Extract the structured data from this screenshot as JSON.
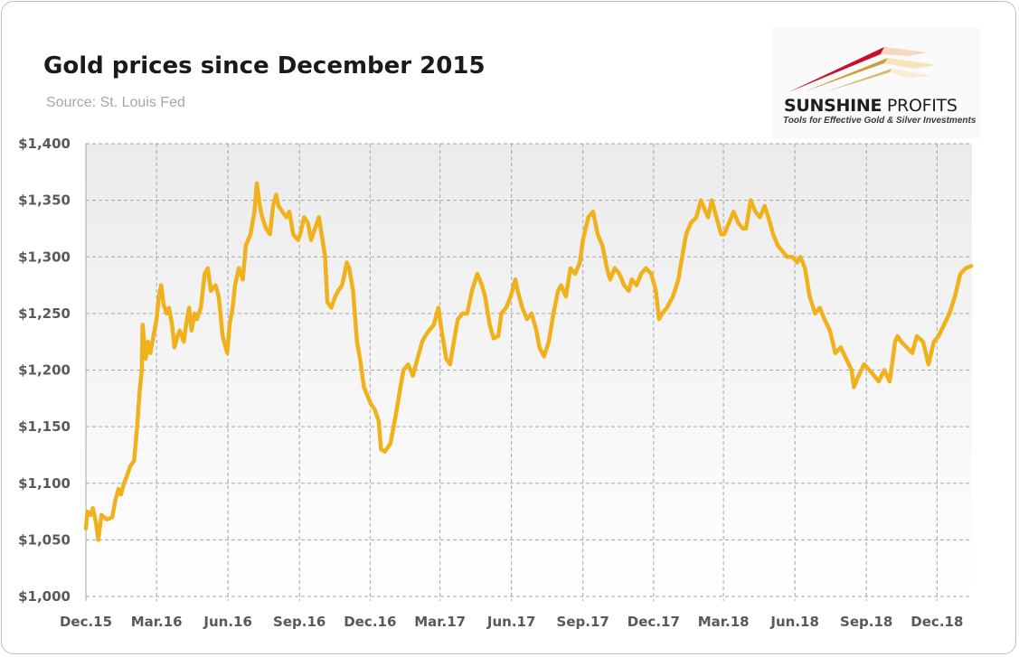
{
  "header": {
    "title": "Gold prices since December 2015",
    "subtitle": "Source: St. Louis Fed"
  },
  "logo": {
    "name_bold": "SUNSHINE",
    "name_light": " PROFITS",
    "tagline": "Tools for Effective Gold & Silver Investments"
  },
  "colors": {
    "line": "#f0b21c",
    "plot_bg_top": "#ebebeb",
    "plot_bg_bottom": "#ffffff",
    "grid": "#a6a6a6"
  },
  "chart_data": {
    "type": "line",
    "title": "Gold prices since December 2015",
    "subtitle": "Source: St. Louis Fed",
    "xlabel": "",
    "ylabel": "",
    "ylim": [
      1000,
      1400
    ],
    "yticks": [
      1000,
      1050,
      1100,
      1150,
      1200,
      1250,
      1300,
      1350,
      1400
    ],
    "ytick_labels": [
      "$1,000",
      "$1,050",
      "$1,100",
      "$1,150",
      "$1,200",
      "$1,250",
      "$1,300",
      "$1,350",
      "$1,400"
    ],
    "xticks": [
      "2015-12-01",
      "2016-03-01",
      "2016-06-01",
      "2016-09-01",
      "2016-12-01",
      "2017-03-01",
      "2017-06-01",
      "2017-09-01",
      "2017-12-01",
      "2018-03-01",
      "2018-06-01",
      "2018-09-01",
      "2018-12-01"
    ],
    "xtick_labels": [
      "Dec.15",
      "Mar.16",
      "Jun.16",
      "Sep.16",
      "Dec.16",
      "Mar.17",
      "Jun.17",
      "Sep.17",
      "Dec.17",
      "Mar.18",
      "Jun.18",
      "Sep.18",
      "Dec.18"
    ],
    "xlim": [
      "2015-12-01",
      "2019-01-15"
    ],
    "grid": true,
    "series": [
      {
        "x": [
          "2015-12-01",
          "2015-12-03",
          "2015-12-07",
          "2015-12-10",
          "2015-12-14",
          "2015-12-17",
          "2015-12-21",
          "2015-12-28",
          "2016-01-04",
          "2016-01-08",
          "2016-01-12",
          "2016-01-15",
          "2016-01-19",
          "2016-01-22",
          "2016-01-27",
          "2016-02-01",
          "2016-02-05",
          "2016-02-08",
          "2016-02-11",
          "2016-02-12",
          "2016-02-16",
          "2016-02-19",
          "2016-02-22",
          "2016-02-26",
          "2016-03-01",
          "2016-03-04",
          "2016-03-07",
          "2016-03-10",
          "2016-03-14",
          "2016-03-17",
          "2016-03-21",
          "2016-03-24",
          "2016-03-28",
          "2016-03-31",
          "2016-04-05",
          "2016-04-08",
          "2016-04-12",
          "2016-04-15",
          "2016-04-19",
          "2016-04-22",
          "2016-04-27",
          "2016-05-02",
          "2016-05-06",
          "2016-05-10",
          "2016-05-16",
          "2016-05-20",
          "2016-05-25",
          "2016-05-31",
          "2016-06-03",
          "2016-06-07",
          "2016-06-10",
          "2016-06-15",
          "2016-06-20",
          "2016-06-24",
          "2016-06-30",
          "2016-07-05",
          "2016-07-08",
          "2016-07-12",
          "2016-07-15",
          "2016-07-20",
          "2016-07-25",
          "2016-07-29",
          "2016-08-02",
          "2016-08-05",
          "2016-08-10",
          "2016-08-15",
          "2016-08-19",
          "2016-08-24",
          "2016-08-30",
          "2016-09-02",
          "2016-09-07",
          "2016-09-12",
          "2016-09-16",
          "2016-09-21",
          "2016-09-26",
          "2016-09-30",
          "2016-10-04",
          "2016-10-07",
          "2016-10-12",
          "2016-10-17",
          "2016-10-21",
          "2016-10-26",
          "2016-11-01",
          "2016-11-04",
          "2016-11-09",
          "2016-11-14",
          "2016-11-18",
          "2016-11-23",
          "2016-11-29",
          "2016-12-02",
          "2016-12-07",
          "2016-12-12",
          "2016-12-15",
          "2016-12-20",
          "2016-12-27",
          "2017-01-03",
          "2017-01-09",
          "2017-01-13",
          "2017-01-19",
          "2017-01-25",
          "2017-01-31",
          "2017-02-06",
          "2017-02-10",
          "2017-02-15",
          "2017-02-21",
          "2017-02-27",
          "2017-03-03",
          "2017-03-09",
          "2017-03-14",
          "2017-03-20",
          "2017-03-24",
          "2017-03-30",
          "2017-04-05",
          "2017-04-11",
          "2017-04-18",
          "2017-04-24",
          "2017-04-28",
          "2017-05-04",
          "2017-05-09",
          "2017-05-15",
          "2017-05-19",
          "2017-05-25",
          "2017-05-31",
          "2017-06-06",
          "2017-06-09",
          "2017-06-15",
          "2017-06-21",
          "2017-06-27",
          "2017-07-03",
          "2017-07-07",
          "2017-07-13",
          "2017-07-19",
          "2017-07-25",
          "2017-07-31",
          "2017-08-04",
          "2017-08-10",
          "2017-08-16",
          "2017-08-22",
          "2017-08-28",
          "2017-09-01",
          "2017-09-08",
          "2017-09-14",
          "2017-09-20",
          "2017-09-26",
          "2017-10-02",
          "2017-10-06",
          "2017-10-12",
          "2017-10-18",
          "2017-10-24",
          "2017-10-30",
          "2017-11-03",
          "2017-11-09",
          "2017-11-15",
          "2017-11-21",
          "2017-11-28",
          "2017-12-04",
          "2017-12-08",
          "2017-12-12",
          "2017-12-18",
          "2017-12-26",
          "2018-01-02",
          "2018-01-08",
          "2018-01-12",
          "2018-01-18",
          "2018-01-25",
          "2018-01-31",
          "2018-02-06",
          "2018-02-09",
          "2018-02-14",
          "2018-02-20",
          "2018-02-26",
          "2018-03-02",
          "2018-03-08",
          "2018-03-14",
          "2018-03-20",
          "2018-03-26",
          "2018-03-30",
          "2018-04-05",
          "2018-04-11",
          "2018-04-17",
          "2018-04-23",
          "2018-04-30",
          "2018-05-04",
          "2018-05-10",
          "2018-05-16",
          "2018-05-22",
          "2018-05-29",
          "2018-06-04",
          "2018-06-08",
          "2018-06-14",
          "2018-06-20",
          "2018-06-27",
          "2018-07-03",
          "2018-07-09",
          "2018-07-16",
          "2018-07-23",
          "2018-07-30",
          "2018-08-06",
          "2018-08-13",
          "2018-08-16",
          "2018-08-22",
          "2018-08-29",
          "2018-09-05",
          "2018-09-11",
          "2018-09-17",
          "2018-09-24",
          "2018-10-01",
          "2018-10-08",
          "2018-10-11",
          "2018-10-16",
          "2018-10-23",
          "2018-10-30",
          "2018-11-05",
          "2018-11-13",
          "2018-11-20",
          "2018-11-27",
          "2018-12-03",
          "2018-12-10",
          "2018-12-17",
          "2018-12-24",
          "2018-12-31",
          "2019-01-07",
          "2019-01-14"
        ],
        "values": [
          1060,
          1075,
          1072,
          1078,
          1065,
          1050,
          1072,
          1068,
          1070,
          1085,
          1095,
          1090,
          1100,
          1105,
          1115,
          1120,
          1150,
          1180,
          1200,
          1240,
          1210,
          1225,
          1215,
          1230,
          1245,
          1265,
          1275,
          1258,
          1250,
          1255,
          1240,
          1220,
          1230,
          1235,
          1225,
          1240,
          1255,
          1235,
          1250,
          1245,
          1255,
          1285,
          1290,
          1270,
          1275,
          1265,
          1230,
          1215,
          1240,
          1255,
          1275,
          1290,
          1280,
          1310,
          1320,
          1340,
          1365,
          1345,
          1335,
          1325,
          1320,
          1345,
          1355,
          1345,
          1340,
          1335,
          1340,
          1320,
          1315,
          1320,
          1335,
          1330,
          1315,
          1325,
          1335,
          1318,
          1300,
          1260,
          1255,
          1265,
          1270,
          1275,
          1295,
          1290,
          1270,
          1225,
          1210,
          1185,
          1175,
          1170,
          1165,
          1155,
          1130,
          1128,
          1135,
          1160,
          1185,
          1200,
          1205,
          1195,
          1210,
          1225,
          1230,
          1235,
          1240,
          1255,
          1235,
          1210,
          1205,
          1230,
          1245,
          1250,
          1250,
          1270,
          1285,
          1275,
          1265,
          1240,
          1228,
          1230,
          1250,
          1255,
          1265,
          1280,
          1270,
          1255,
          1245,
          1250,
          1235,
          1220,
          1212,
          1225,
          1250,
          1270,
          1275,
          1265,
          1290,
          1285,
          1295,
          1315,
          1335,
          1340,
          1320,
          1310,
          1290,
          1280,
          1290,
          1285,
          1275,
          1270,
          1280,
          1275,
          1285,
          1290,
          1285,
          1270,
          1245,
          1250,
          1255,
          1265,
          1280,
          1305,
          1320,
          1330,
          1335,
          1350,
          1340,
          1335,
          1350,
          1335,
          1320,
          1320,
          1330,
          1340,
          1330,
          1325,
          1325,
          1350,
          1340,
          1335,
          1345,
          1330,
          1320,
          1310,
          1305,
          1300,
          1300,
          1295,
          1300,
          1290,
          1265,
          1250,
          1255,
          1245,
          1235,
          1215,
          1220,
          1210,
          1200,
          1185,
          1195,
          1205,
          1200,
          1195,
          1190,
          1200,
          1190,
          1225,
          1230,
          1225,
          1220,
          1215,
          1230,
          1225,
          1205,
          1225,
          1230,
          1240,
          1250,
          1265,
          1285,
          1290,
          1292
        ]
      }
    ]
  }
}
